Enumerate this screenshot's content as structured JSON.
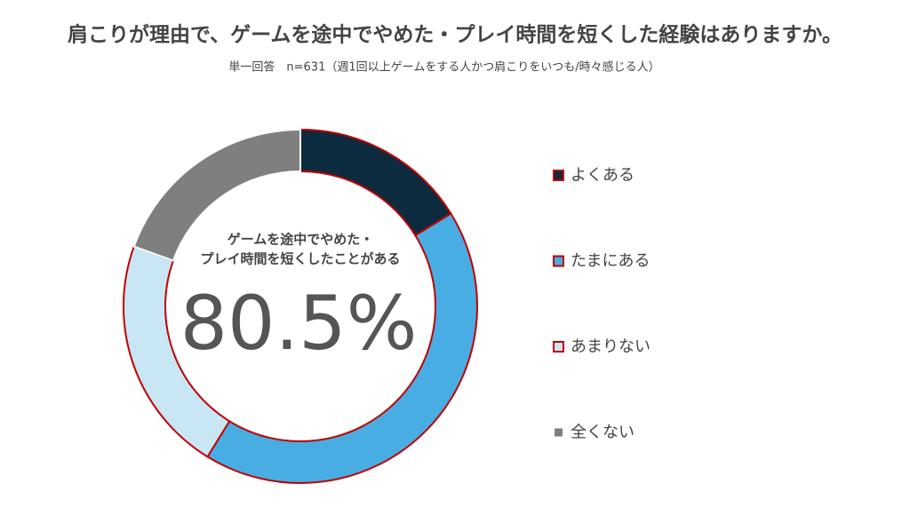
{
  "chart_data": {
    "type": "donut",
    "title": "肩こりが理由で、ゲームを途中でやめた・プレイ時間を短くした経験はありますか。",
    "subtitle": "単一回答　n=631（週1回以上ゲームをする人かつ肩こりをいつも/時々感じる人）",
    "center_label": [
      "ゲームを途中でやめた・",
      "プレイ時間を短くしたことがある"
    ],
    "center_value": "80.5%",
    "categories": [
      "よくある",
      "たまにある",
      "あまりない",
      "全くない"
    ],
    "values": [
      16.2,
      42.6,
      21.7,
      19.5
    ],
    "colors": [
      "#0d2b3e",
      "#48ade2",
      "#c9e6f5",
      "#7f7f7f"
    ],
    "edgecolors": [
      "#c00000",
      "#c00000",
      "#c00000",
      "#ffffff"
    ],
    "legend": "right"
  }
}
